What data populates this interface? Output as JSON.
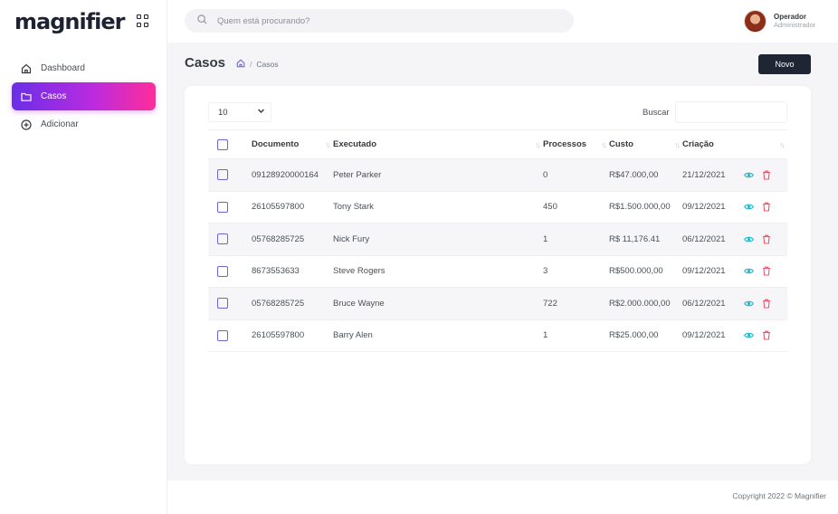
{
  "brand": {
    "logo": "magnifier"
  },
  "sidebar": {
    "items": [
      {
        "label": "Dashboard",
        "icon": "home-icon",
        "active": false
      },
      {
        "label": "Casos",
        "icon": "folder-icon",
        "active": true
      },
      {
        "label": "Adicionar",
        "icon": "plus-circle-icon",
        "active": false
      }
    ]
  },
  "topbar": {
    "search_placeholder": "Quem está procurando?",
    "user": {
      "name": "Operador",
      "role": "Administrador"
    }
  },
  "page": {
    "title": "Casos",
    "breadcrumb": [
      "Casos"
    ],
    "new_button": "Novo"
  },
  "table": {
    "page_length": "10",
    "search_label": "Buscar",
    "columns": [
      "Documento",
      "Executado",
      "Processos",
      "Custo",
      "Criação"
    ],
    "rows": [
      {
        "documento": "09128920000164",
        "executado": "Peter Parker",
        "processos": "0",
        "custo": "R$47.000,00",
        "criacao": "21/12/2021"
      },
      {
        "documento": "26105597800",
        "executado": "Tony Stark",
        "processos": "450",
        "custo": "R$1.500.000,00",
        "criacao": "09/12/2021"
      },
      {
        "documento": "05768285725",
        "executado": "Nick Fury",
        "processos": "1",
        "custo": "R$ 11,176.41",
        "criacao": "06/12/2021"
      },
      {
        "documento": "8673553633",
        "executado": "Steve Rogers",
        "processos": "3",
        "custo": "R$500.000,00",
        "criacao": "09/12/2021"
      },
      {
        "documento": "05768285725",
        "executado": "Bruce Wayne",
        "processos": "722",
        "custo": "R$2.000.000,00",
        "criacao": "06/12/2021"
      },
      {
        "documento": "26105597800",
        "executado": "Barry Alen",
        "processos": "1",
        "custo": "R$25.000,00",
        "criacao": "09/12/2021"
      }
    ]
  },
  "footer": {
    "copyright": "Copyright 2022 © Magnifier"
  },
  "colors": {
    "accent_start": "#6a2ee8",
    "accent_end": "#ff2d9a",
    "view_icon": "#1fb5c8",
    "delete_icon": "#f1556c",
    "dark_button": "#1e2533"
  }
}
